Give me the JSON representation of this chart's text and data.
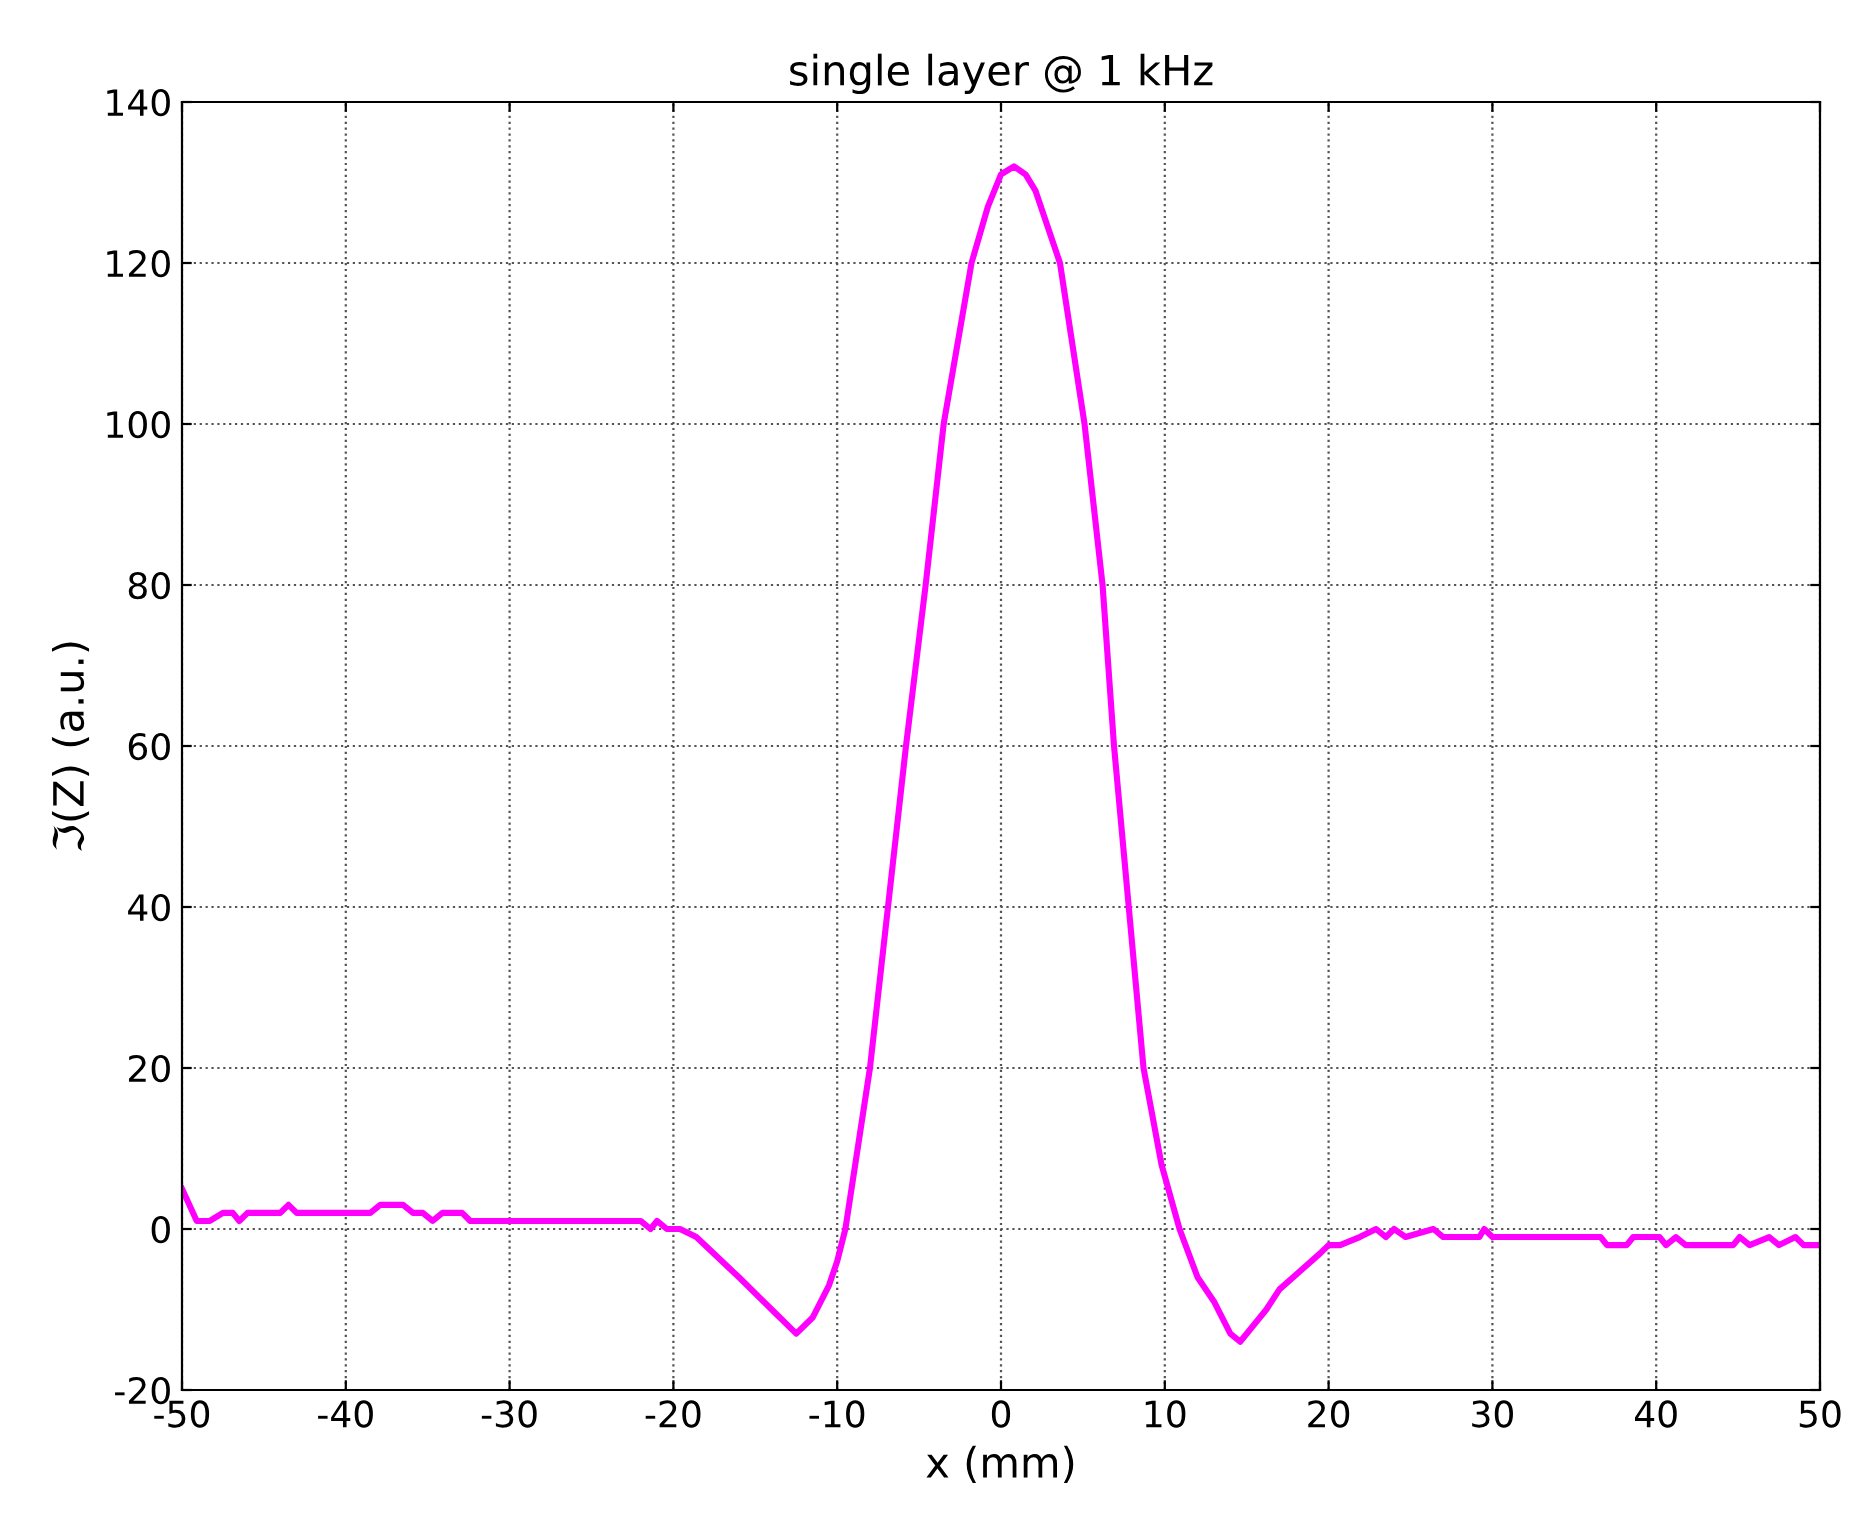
{
  "chart_data": {
    "type": "line",
    "title": "single layer @ 1 kHz",
    "xlabel": "x (mm)",
    "ylabel": "ℑ(Z) (a.u.)",
    "x": [
      -50,
      -49.1,
      -48.3,
      -47.5,
      -46.9,
      -46.5,
      -46.0,
      -44.0,
      -43.5,
      -43.0,
      -38.5,
      -37.9,
      -36.5,
      -35.9,
      -35.3,
      -34.7,
      -34.1,
      -32.9,
      -32.4,
      -22.0,
      -21.4,
      -21.0,
      -20.4,
      -19.6,
      -18.6,
      -16.0,
      -14.0,
      -12.5,
      -11.5,
      -10.5,
      -10.0,
      -9.5,
      -8.0,
      -6.9,
      -5.8,
      -4.6,
      -3.5,
      -1.8,
      -0.8,
      0.0,
      0.8,
      1.5,
      2.1,
      3.6,
      5.1,
      6.2,
      6.9,
      7.8,
      8.7,
      9.8,
      10.9,
      12.0,
      13.0,
      14.0,
      14.6,
      16.2,
      17.0,
      19.5,
      20.0,
      20.7,
      21.9,
      22.9,
      23.5,
      24.0,
      24.7,
      26.4,
      27.0,
      29.2,
      29.5,
      30.0,
      36.6,
      37.0,
      38.2,
      38.6,
      40.2,
      40.6,
      41.2,
      41.8,
      44.7,
      45.1,
      45.7,
      46.9,
      47.5,
      48.5,
      49.0,
      50.0
    ],
    "series": [
      {
        "color": "#ff00ff",
        "values": [
          5,
          1,
          1,
          2,
          2,
          1,
          2,
          2,
          3,
          2,
          2,
          3,
          3,
          2,
          2,
          1,
          2,
          2,
          1,
          1,
          0,
          1,
          0,
          0,
          -1,
          -6,
          -10,
          -13,
          -11,
          -7,
          -4,
          0,
          20,
          40,
          60,
          80,
          100,
          120,
          127,
          131,
          132,
          131,
          129,
          120,
          100,
          80,
          60,
          40,
          20,
          8,
          0,
          -6,
          -9,
          -13,
          -14,
          -10,
          -7.5,
          -3,
          -2,
          -2,
          -1,
          0,
          -1,
          0,
          -1,
          0,
          -1,
          -1,
          0,
          -1,
          -1,
          -2,
          -2,
          -1,
          -1,
          -2,
          -1,
          -2,
          -2,
          -1,
          -2,
          -1,
          -2,
          -1,
          -2,
          -2
        ]
      }
    ],
    "xlim": [
      -50,
      50
    ],
    "ylim": [
      -20,
      140
    ],
    "xticks": [
      -50,
      -40,
      -30,
      -20,
      -10,
      0,
      10,
      20,
      30,
      40,
      50
    ],
    "yticks": [
      -20,
      0,
      20,
      40,
      60,
      80,
      100,
      120,
      140
    ],
    "grid": true,
    "line_style": "solid",
    "marker": "none"
  }
}
